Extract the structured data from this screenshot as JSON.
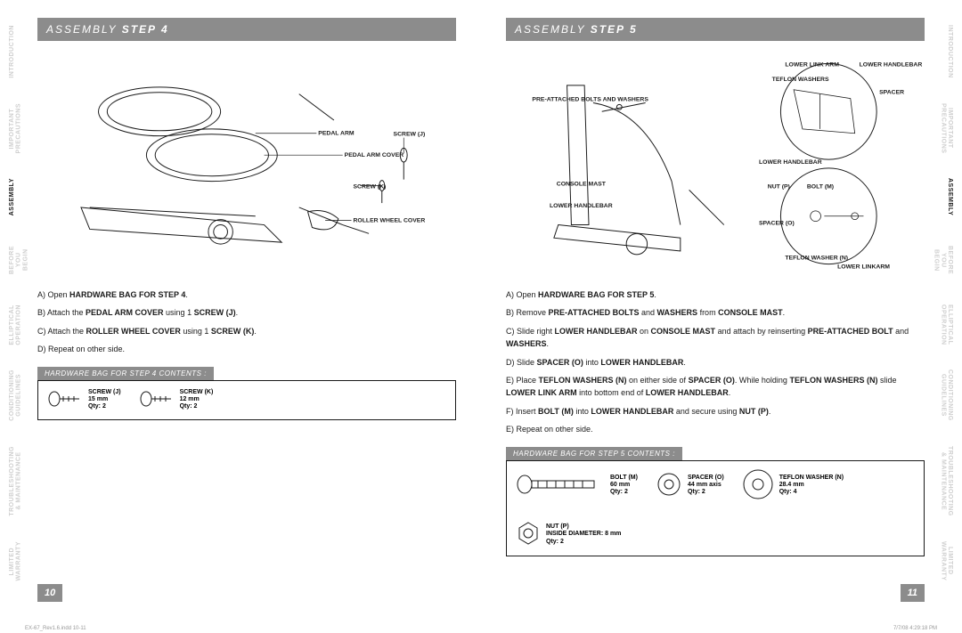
{
  "sidebar_tabs": [
    {
      "line1": "INTRODUCTION",
      "line2": ""
    },
    {
      "line1": "IMPORTANT",
      "line2": "PRECAUTIONS"
    },
    {
      "line1": "ASSEMBLY",
      "line2": "",
      "active": true
    },
    {
      "line1": "BEFORE",
      "line2": "YOU BEGIN"
    },
    {
      "line1": "ELLIPTICAL",
      "line2": "OPERATION"
    },
    {
      "line1": "CONDITIONING",
      "line2": "GUIDELINES"
    },
    {
      "line1": "TROUBLESHOOTING",
      "line2": "& MAINTENANCE"
    },
    {
      "line1": "LIMITED",
      "line2": "WARRANTY"
    }
  ],
  "left": {
    "headerA": "ASSEMBLY ",
    "headerB": "STEP 4",
    "callouts": {
      "pedal_arm": "PEDAL ARM",
      "pedal_arm_cover": "PEDAL ARM COVER",
      "screw_j": "SCREW (J)",
      "screw_k": "SCREW (K)",
      "roller_wheel_cover": "ROLLER WHEEL COVER"
    },
    "steps": [
      "A) Open <b>HARDWARE BAG FOR STEP 4</b>.",
      "B) Attach the <b>PEDAL ARM COVER</b> using 1 <b>SCREW (J)</b>.",
      "C) Attach the <b>ROLLER WHEEL COVER</b> using 1 <b>SCREW (K)</b>.",
      "D) Repeat on other side."
    ],
    "hw_title": "HARDWARE BAG FOR STEP 4 CONTENTS :",
    "hw_items": [
      {
        "name": "SCREW (J)",
        "spec": "15 mm",
        "qty": "Qty: 2",
        "icon": "screw"
      },
      {
        "name": "SCREW (K)",
        "spec": "12 mm",
        "qty": "Qty: 2",
        "icon": "screw"
      }
    ],
    "pagenum": "10"
  },
  "right": {
    "headerA": "ASSEMBLY ",
    "headerB": "STEP 5",
    "callouts": {
      "lower_link_arm": "LOWER LINK ARM",
      "lower_handlebar_top": "LOWER HANDLEBAR",
      "teflon_washers": "TEFLON WASHERS",
      "spacer_top": "SPACER",
      "pre_attached": "PRE-ATTACHED BOLTS AND WASHERS",
      "console_mast": "CONSOLE MAST",
      "lower_handlebar": "LOWER HANDLEBAR",
      "lower_handlebar2": "LOWER HANDLEBAR",
      "nut_p": "NUT (P)",
      "bolt_m": "BOLT (M)",
      "spacer_o": "SPACER (O)",
      "teflon_washer_n": "TEFLON WASHER (N)",
      "lower_linkarm": "LOWER LINKARM"
    },
    "steps": [
      "A) Open <b>HARDWARE BAG FOR STEP 5</b>.",
      "B) Remove <b>PRE-ATTACHED BOLTS</b> and <b>WASHERS</b> from <b>CONSOLE MAST</b>.",
      "C) Slide right <b>LOWER HANDLEBAR</b> on <b>CONSOLE MAST</b> and attach by reinserting <b>PRE-ATTACHED BOLT</b> and <b>WASHERS</b>.",
      "D) Slide <b>SPACER (O)</b> into <b>LOWER HANDLEBAR</b>.",
      "E) Place <b>TEFLON WASHERS (N)</b> on either side of <b>SPACER (O)</b>. While holding <b>TEFLON WASHERS (N)</b> slide <b>LOWER LINK ARM</b> into bottom end of <b>LOWER HANDLEBAR</b>.",
      "F) Insert <b>BOLT (M)</b> into <b>LOWER HANDLEBAR</b> and secure using <b>NUT (P)</b>.",
      "E) Repeat on other side."
    ],
    "hw_title": "HARDWARE BAG FOR STEP 5 CONTENTS :",
    "hw_items": [
      {
        "name": "BOLT (M)",
        "spec": "60 mm",
        "qty": "Qty: 2",
        "icon": "bolt"
      },
      {
        "name": "SPACER (O)",
        "spec": "44 mm axis",
        "qty": "Qty: 2",
        "icon": "spacer"
      },
      {
        "name": "TEFLON WASHER (N)",
        "spec": "28.4 mm",
        "qty": "Qty: 4",
        "icon": "washer"
      },
      {
        "name": "NUT (P)",
        "spec": "INSIDE DIAMETER: 8 mm",
        "qty": "Qty: 2",
        "icon": "nut"
      }
    ],
    "pagenum": "11"
  },
  "footer": {
    "left": "EX-67_Rev1.6.indd   10-11",
    "right": "7/7/08   4:29:18 PM"
  },
  "colors": {
    "bar": "#8c8c8c",
    "text": "#1a1a1a",
    "muted": "#cfcfcf"
  }
}
